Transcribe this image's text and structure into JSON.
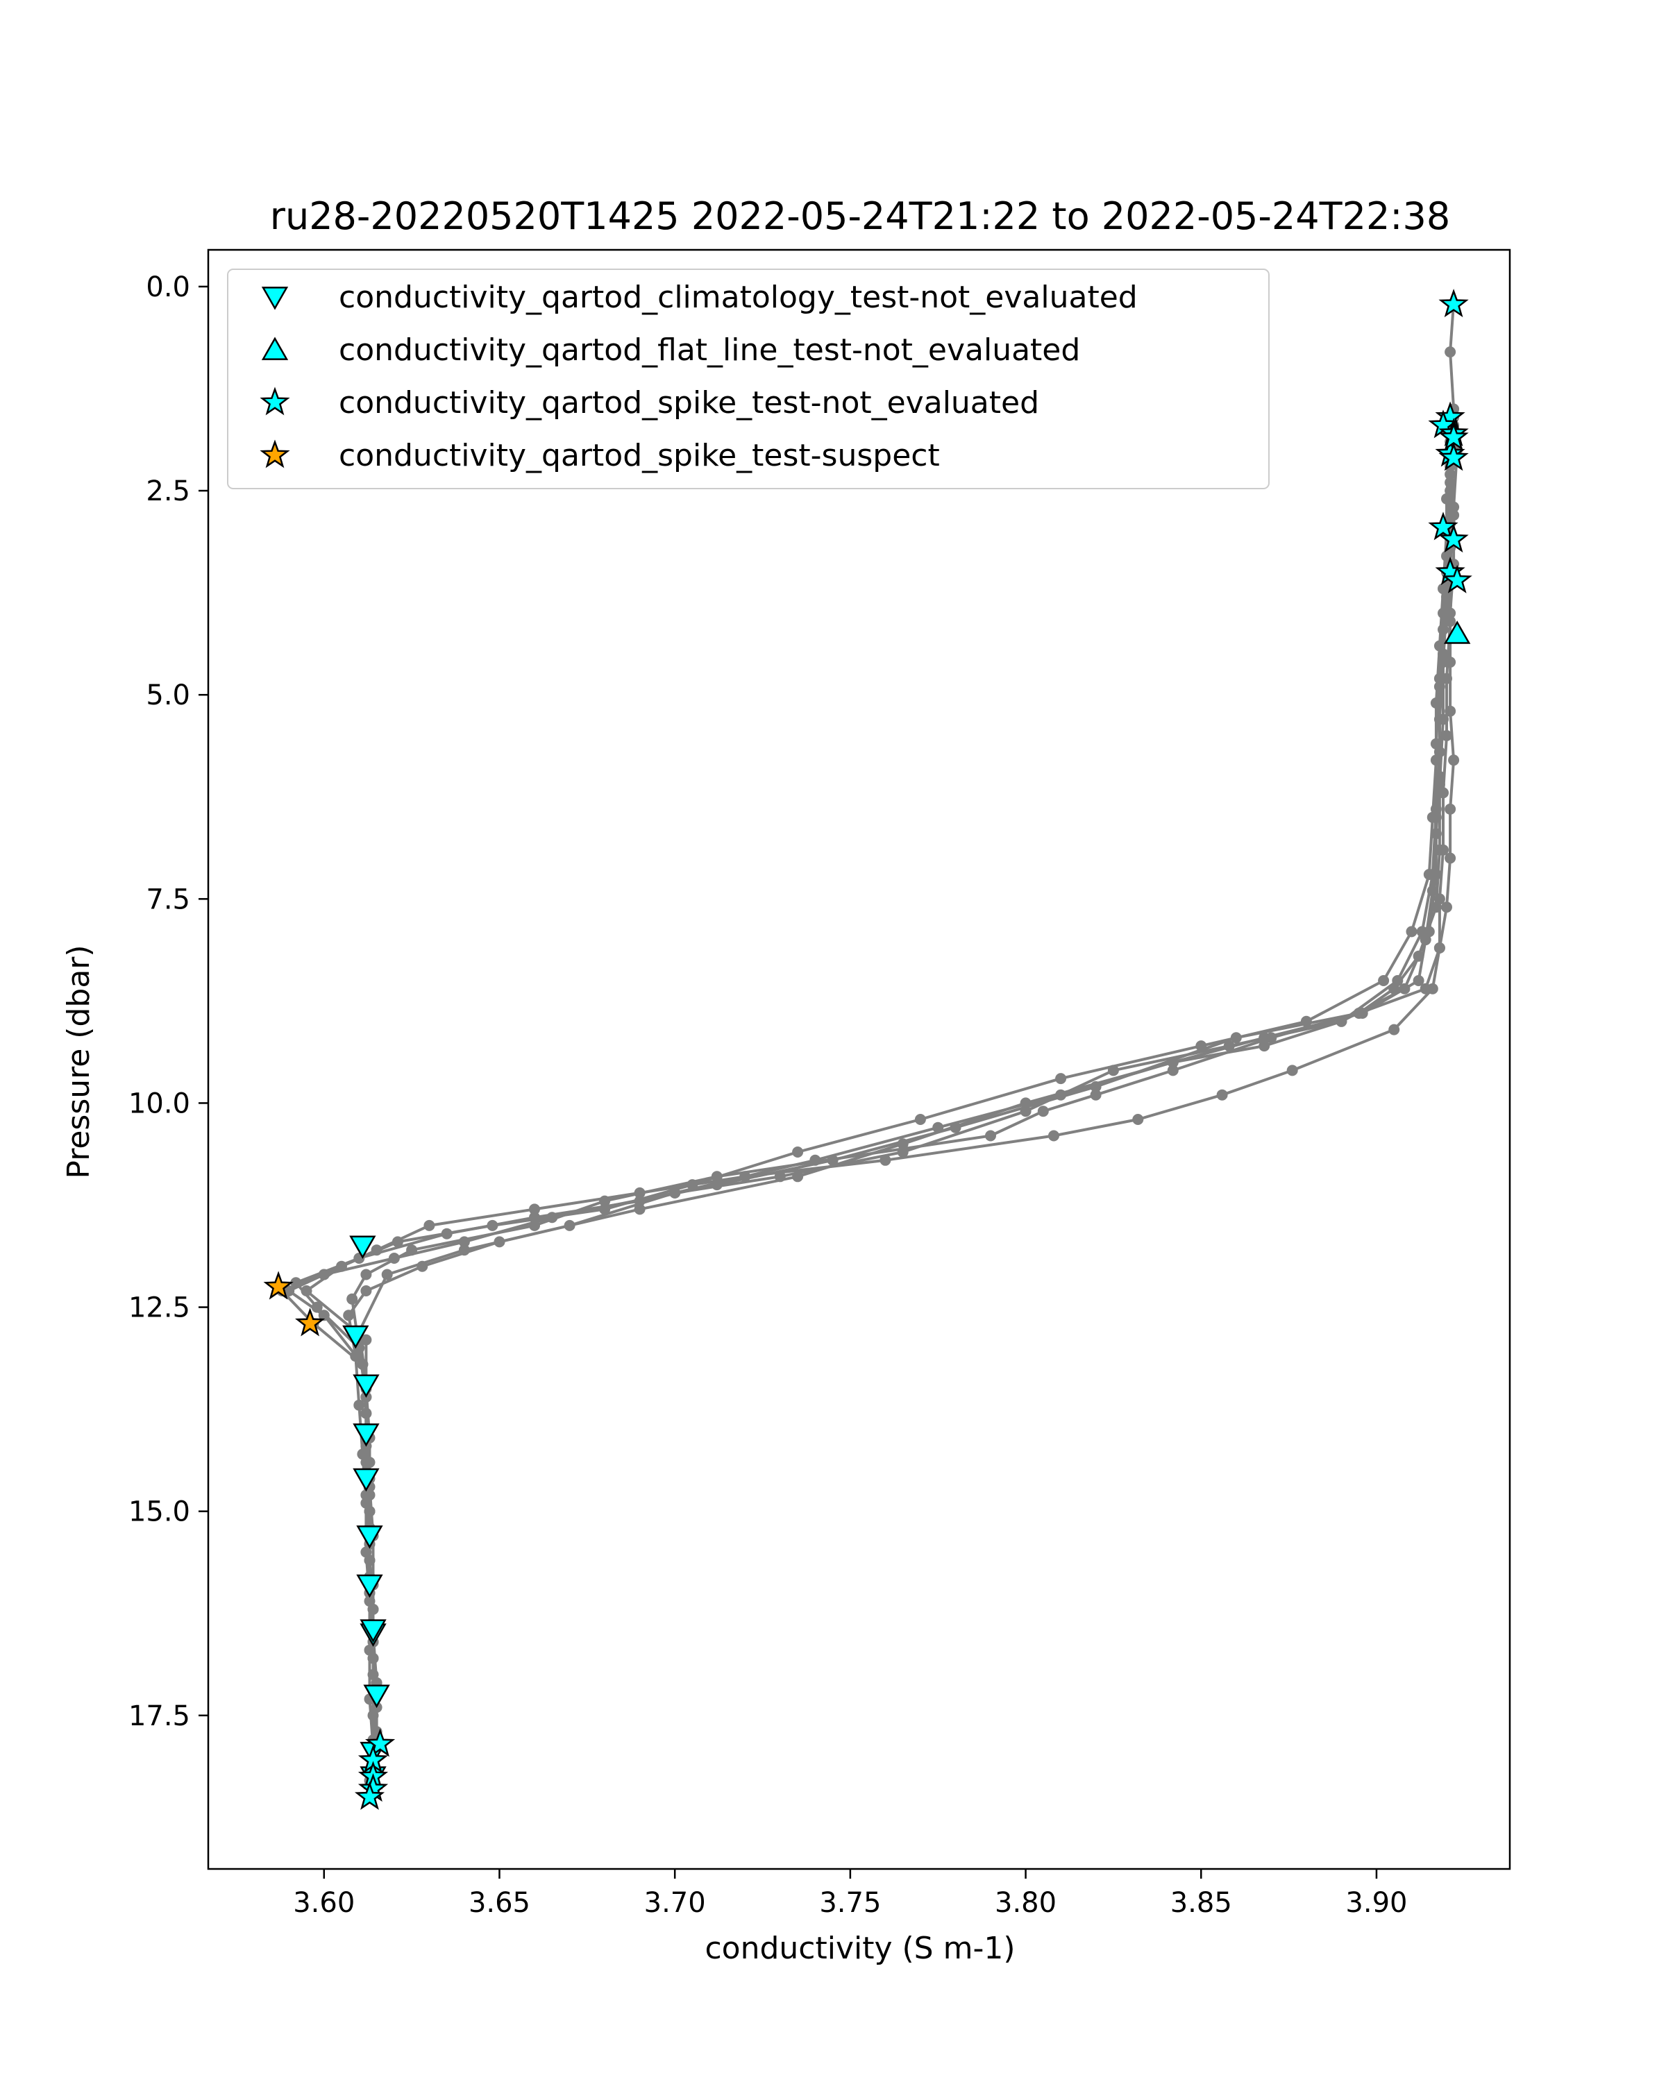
{
  "chart_data": {
    "type": "scatter",
    "title": "ru28-20220520T1425 2022-05-24T21:22 to 2022-05-24T22:38",
    "xlabel": "conductivity (S m-1)",
    "ylabel": "Pressure (dbar)",
    "xlim": [
      3.567,
      3.938
    ],
    "ylim": [
      19.38,
      -0.45
    ],
    "y_inverted": true,
    "x_ticks": [
      "3.60",
      "3.65",
      "3.70",
      "3.75",
      "3.80",
      "3.85",
      "3.90"
    ],
    "y_ticks": [
      "0.0",
      "2.5",
      "5.0",
      "7.5",
      "10.0",
      "12.5",
      "15.0",
      "17.5"
    ],
    "grid": false,
    "legend_position": "top-left",
    "profile_color": "#808080",
    "profiles": [
      {
        "x": [
          3.922,
          3.921,
          3.922,
          3.921,
          3.922,
          3.922,
          3.921,
          3.921,
          3.921,
          3.922,
          3.921,
          3.921,
          3.92,
          3.918,
          3.914,
          3.895,
          3.87,
          3.842,
          3.82,
          3.805,
          3.79,
          3.712,
          3.68,
          3.66,
          3.625,
          3.612,
          3.608,
          3.61,
          3.612,
          3.612,
          3.613,
          3.613,
          3.613,
          3.614,
          3.614,
          3.615,
          3.614,
          3.614,
          3.614
        ],
        "y": [
          0.2,
          0.8,
          1.5,
          2.1,
          2.8,
          3.4,
          4.0,
          4.6,
          5.2,
          5.8,
          6.4,
          7.0,
          7.6,
          8.1,
          8.6,
          8.9,
          9.2,
          9.6,
          9.9,
          10.1,
          10.4,
          10.9,
          11.2,
          11.5,
          11.8,
          12.1,
          12.4,
          13.0,
          13.6,
          14.2,
          14.8,
          15.4,
          16.0,
          16.6,
          17.2,
          17.7,
          18.1,
          18.3,
          18.4
        ]
      },
      {
        "x": [
          3.921,
          3.92,
          3.92,
          3.919,
          3.918,
          3.917,
          3.917,
          3.916,
          3.913,
          3.906,
          3.89,
          3.868,
          3.842,
          3.8,
          3.765,
          3.735,
          3.69,
          3.65,
          3.628,
          3.612,
          3.607,
          3.609,
          3.61,
          3.611,
          3.612,
          3.612,
          3.613,
          3.613,
          3.613,
          3.614,
          3.613
        ],
        "y": [
          1.9,
          2.6,
          3.3,
          4.0,
          4.8,
          5.6,
          6.4,
          7.2,
          7.9,
          8.5,
          9.0,
          9.3,
          9.5,
          10.0,
          10.5,
          10.9,
          11.3,
          11.7,
          12.0,
          12.3,
          12.6,
          13.1,
          13.7,
          14.3,
          14.9,
          15.5,
          16.1,
          16.7,
          17.3,
          17.9,
          18.3
        ]
      },
      {
        "x": [
          3.922,
          3.921,
          3.92,
          3.919,
          3.918,
          3.917,
          3.917,
          3.916,
          3.915,
          3.91,
          3.902,
          3.88,
          3.85,
          3.81,
          3.77,
          3.735,
          3.705,
          3.68,
          3.648,
          3.621,
          3.605,
          3.595,
          3.612,
          3.612,
          3.613,
          3.613,
          3.614,
          3.614,
          3.614,
          3.615,
          3.615,
          3.614
        ],
        "y": [
          1.7,
          2.4,
          3.0,
          3.7,
          4.4,
          5.1,
          5.8,
          6.5,
          7.2,
          7.9,
          8.5,
          9.0,
          9.3,
          9.7,
          10.2,
          10.6,
          11.0,
          11.3,
          11.5,
          11.7,
          12.0,
          12.3,
          12.9,
          13.5,
          14.1,
          14.7,
          15.3,
          15.9,
          16.5,
          17.1,
          17.7,
          18.1
        ]
      },
      {
        "x": [
          3.921,
          3.921,
          3.92,
          3.919,
          3.918,
          3.918,
          3.917,
          3.917,
          3.915,
          3.908,
          3.89,
          3.858,
          3.825,
          3.8,
          3.765,
          3.73,
          3.7,
          3.665,
          3.64,
          3.62,
          3.6,
          3.59,
          3.6,
          3.611,
          3.612,
          3.612,
          3.613,
          3.613,
          3.614,
          3.614,
          3.615,
          3.614
        ],
        "y": [
          2.2,
          2.9,
          3.5,
          4.2,
          4.9,
          5.7,
          6.5,
          7.2,
          7.9,
          8.6,
          9.0,
          9.3,
          9.6,
          10.1,
          10.6,
          10.9,
          11.1,
          11.4,
          11.7,
          11.9,
          12.1,
          12.3,
          12.6,
          13.2,
          13.8,
          14.4,
          15.0,
          15.6,
          16.2,
          16.8,
          17.4,
          18.0
        ]
      },
      {
        "x": [
          3.922,
          3.921,
          3.921,
          3.92,
          3.919,
          3.919,
          3.918,
          3.918,
          3.917,
          3.912,
          3.905,
          3.895,
          3.86,
          3.82,
          3.78,
          3.745,
          3.712,
          3.69,
          3.66,
          3.635,
          3.61,
          3.592,
          3.598,
          3.61,
          3.612,
          3.612,
          3.612,
          3.613,
          3.613,
          3.614,
          3.614,
          3.614
        ],
        "y": [
          1.6,
          2.3,
          3.0,
          3.8,
          4.5,
          5.3,
          6.1,
          6.9,
          7.6,
          8.2,
          8.6,
          8.9,
          9.2,
          9.8,
          10.3,
          10.7,
          11.0,
          11.2,
          11.4,
          11.6,
          11.9,
          12.2,
          12.5,
          13.0,
          13.6,
          14.2,
          14.8,
          15.4,
          16.0,
          16.6,
          17.2,
          17.8
        ]
      },
      {
        "x": [
          3.923,
          3.922,
          3.921,
          3.921,
          3.92,
          3.92,
          3.919,
          3.919,
          3.918,
          3.918,
          3.916,
          3.905,
          3.876,
          3.856,
          3.832,
          3.808,
          3.76,
          3.72,
          3.69,
          3.66,
          3.63,
          3.615,
          3.6,
          3.588,
          3.597,
          3.611,
          3.612,
          3.613,
          3.613,
          3.613,
          3.614,
          3.614,
          3.614
        ],
        "y": [
          2.0,
          2.7,
          3.4,
          4.1,
          4.8,
          5.5,
          6.2,
          6.9,
          7.5,
          8.1,
          8.6,
          9.1,
          9.6,
          9.9,
          10.2,
          10.4,
          10.7,
          10.9,
          11.1,
          11.3,
          11.5,
          11.8,
          12.1,
          12.3,
          12.7,
          13.2,
          13.8,
          14.4,
          15.0,
          15.6,
          16.2,
          16.8,
          17.5
        ]
      },
      {
        "x": [
          3.922,
          3.921,
          3.921,
          3.92,
          3.919,
          3.918,
          3.918,
          3.917,
          3.916,
          3.914,
          3.912,
          3.896,
          3.868,
          3.842,
          3.81,
          3.775,
          3.74,
          3.7,
          3.67,
          3.64,
          3.618,
          3.61,
          3.612,
          3.612,
          3.613,
          3.613,
          3.613,
          3.614,
          3.614
        ],
        "y": [
          1.8,
          2.5,
          3.2,
          3.9,
          4.6,
          5.3,
          6.0,
          6.7,
          7.4,
          8.0,
          8.5,
          8.9,
          9.2,
          9.5,
          9.9,
          10.3,
          10.7,
          11.1,
          11.5,
          11.8,
          12.1,
          12.8,
          13.4,
          14.0,
          14.6,
          15.2,
          15.8,
          16.4,
          17.0
        ]
      }
    ],
    "series": [
      {
        "name": "conductivity_qartod_climatology_test-not_evaluated",
        "marker": "triangle-down",
        "color": "#00ffff",
        "x": [
          3.611,
          3.609,
          3.612,
          3.612,
          3.612,
          3.613,
          3.613,
          3.614,
          3.614,
          3.615,
          3.614,
          3.614
        ],
        "y": [
          11.75,
          12.85,
          13.45,
          14.05,
          14.6,
          15.3,
          15.9,
          16.5,
          16.45,
          17.25,
          17.95,
          18.25
        ]
      },
      {
        "name": "conductivity_qartod_flat_line_test-not_evaluated",
        "marker": "triangle-up",
        "color": "#00ffff",
        "x": [
          3.923
        ],
        "y": [
          4.25
        ]
      },
      {
        "name": "conductivity_qartod_spike_test-not_evaluated",
        "marker": "star",
        "color": "#00ffff",
        "x": [
          3.922,
          3.921,
          3.919,
          3.922,
          3.921,
          3.919,
          3.922,
          3.921,
          3.923,
          3.922,
          3.922,
          3.616,
          3.614,
          3.614,
          3.614,
          3.613
        ],
        "y": [
          0.22,
          1.6,
          1.7,
          1.8,
          2.05,
          2.95,
          3.1,
          3.5,
          3.6,
          1.85,
          2.1,
          17.85,
          18.05,
          18.25,
          18.4,
          18.5
        ]
      },
      {
        "name": "conductivity_qartod_spike_test-suspect",
        "marker": "star",
        "color": "#ffa500",
        "x": [
          3.587,
          3.596
        ],
        "y": [
          12.25,
          12.7
        ]
      }
    ]
  }
}
